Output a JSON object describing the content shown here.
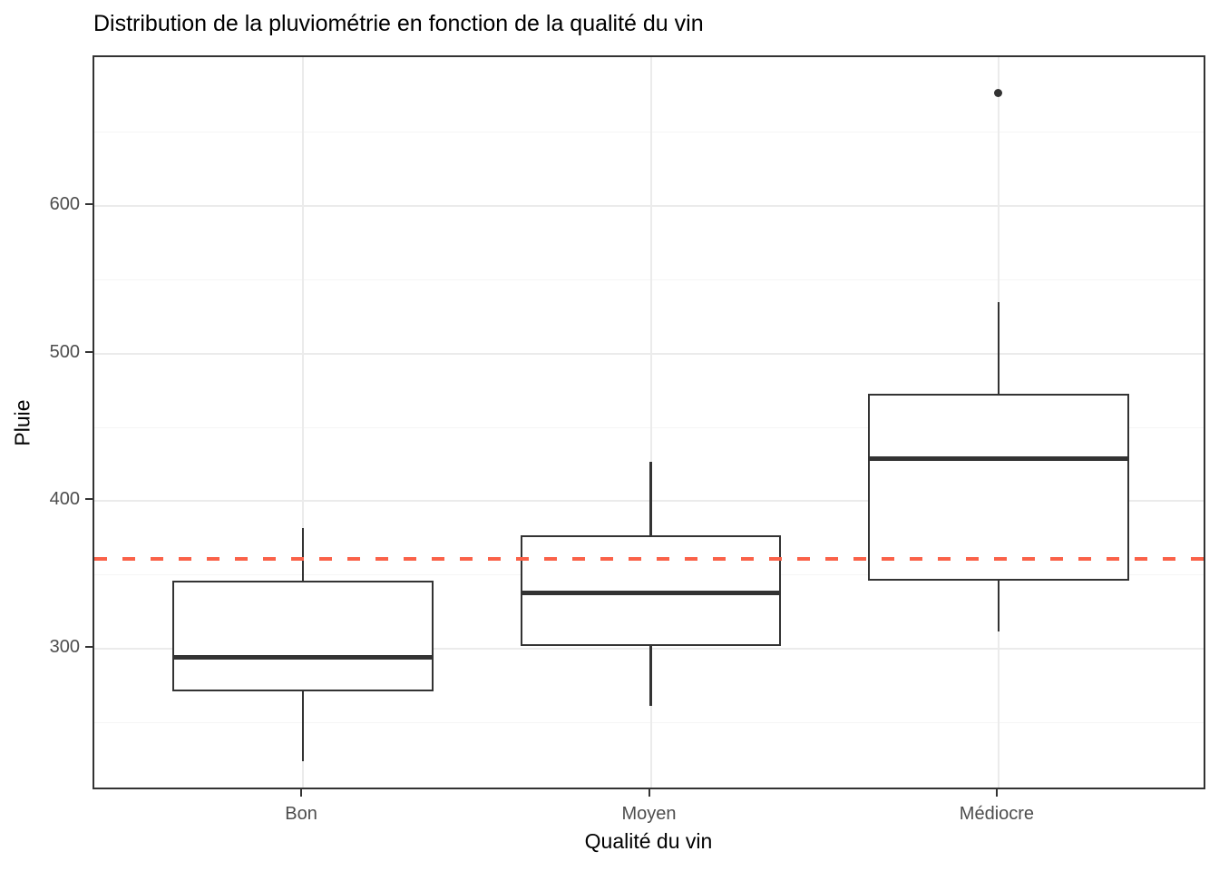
{
  "chart_data": {
    "type": "boxplot",
    "title": "Distribution de la pluviométrie en fonction de la qualité du vin",
    "xlabel": "Qualité du vin",
    "ylabel": "Pluie",
    "categories": [
      "Bon",
      "Moyen",
      "Médiocre"
    ],
    "series": [
      {
        "category": "Bon",
        "whisker_low": 224,
        "q1": 271,
        "median": 294,
        "q3": 346,
        "whisker_high": 382,
        "outliers": []
      },
      {
        "category": "Moyen",
        "whisker_low": 261,
        "q1": 302,
        "median": 338,
        "q3": 377,
        "whisker_high": 427,
        "outliers": []
      },
      {
        "category": "Médiocre",
        "whisker_low": 312,
        "q1": 346,
        "median": 429,
        "q3": 473,
        "whisker_high": 535,
        "outliers": [
          677
        ]
      }
    ],
    "reference_line": {
      "value": 361,
      "style": "dashed",
      "color": "#FA6148"
    },
    "y_ticks": [
      300,
      400,
      500,
      600
    ],
    "y_minor_ticks": [
      250,
      350,
      450,
      550,
      650
    ],
    "ylim": [
      203.5,
      701
    ],
    "grid": "on",
    "legend": "none",
    "colors": {
      "box_border": "#333333",
      "box_fill": "#FFFFFF",
      "median": "#333333",
      "outlier": "#333333",
      "grid_major": "#EBEBEB",
      "grid_minor": "#F5F5F5",
      "panel_border": "#333333",
      "tick_label": "#4D4D4D",
      "axis_title": "#000000",
      "background": "#FFFFFF",
      "reference": "#FA6148"
    }
  }
}
